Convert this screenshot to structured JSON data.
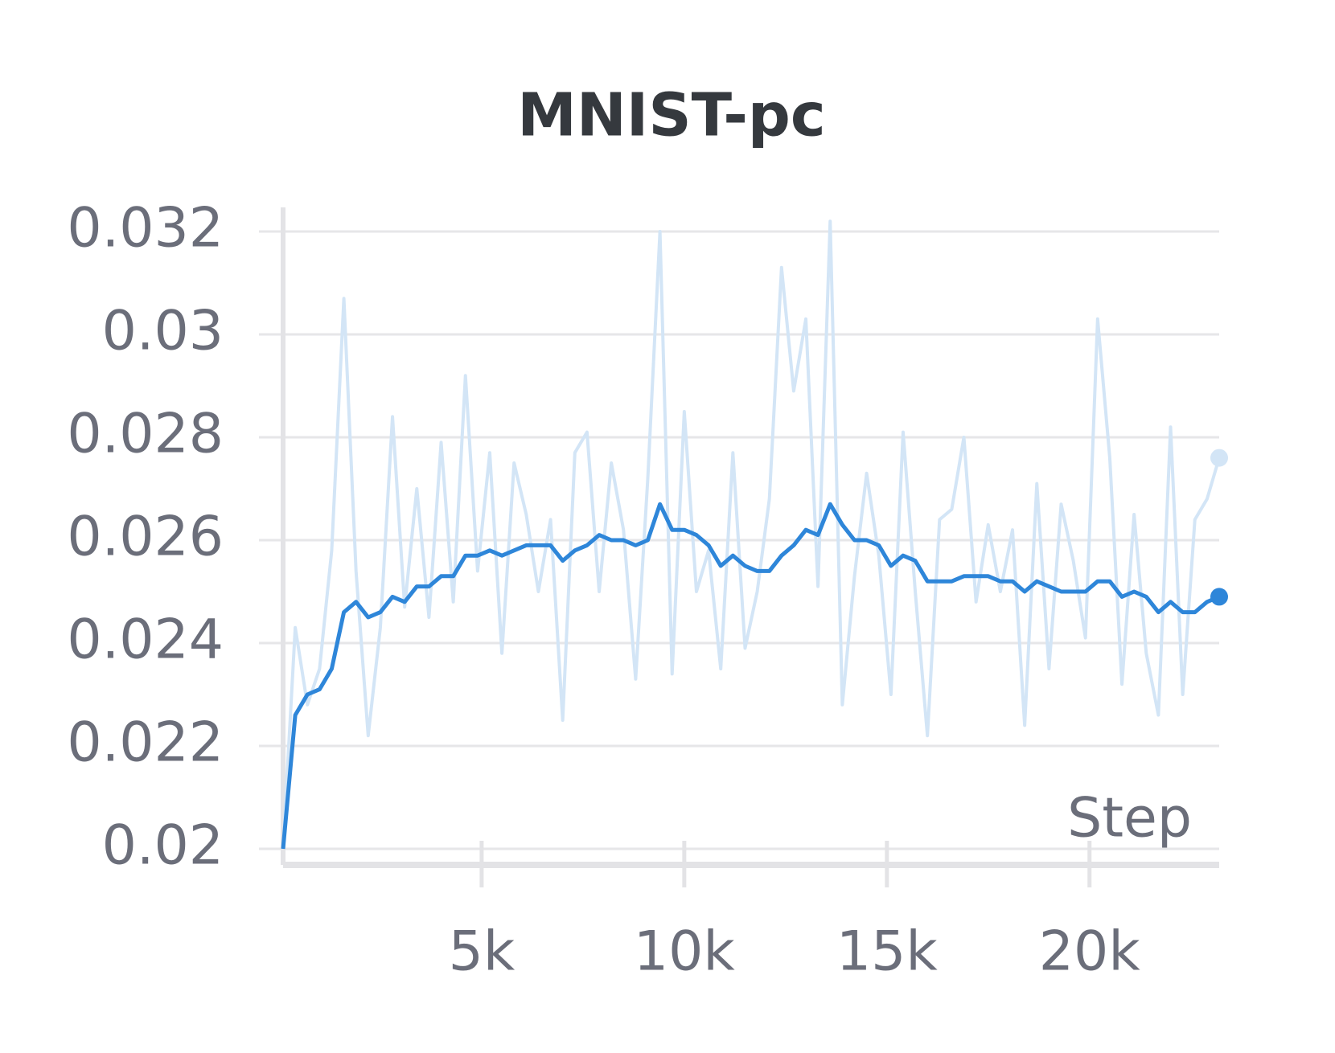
{
  "chart_data": {
    "type": "line",
    "title": "MNIST-pc",
    "x_label": "Step",
    "x": [
      100,
      400,
      700,
      1000,
      1300,
      1600,
      1900,
      2200,
      2500,
      2800,
      3100,
      3400,
      3700,
      4000,
      4300,
      4600,
      4900,
      5200,
      5500,
      5800,
      6100,
      6400,
      6700,
      7000,
      7300,
      7600,
      7900,
      8200,
      8500,
      8800,
      9100,
      9400,
      9700,
      10000,
      10300,
      10600,
      10900,
      11200,
      11500,
      11800,
      12100,
      12400,
      12700,
      13000,
      13300,
      13600,
      13900,
      14200,
      14500,
      14800,
      15100,
      15400,
      15700,
      16000,
      16300,
      16600,
      16900,
      17200,
      17500,
      17800,
      18100,
      18400,
      18700,
      19000,
      19300,
      19600,
      19900,
      20200,
      20500,
      20800,
      21100,
      21400,
      21700,
      22000,
      22300,
      22600,
      22900,
      23200
    ],
    "series": [
      {
        "color": "#d3e5f6",
        "values": [
          0.02,
          0.0243,
          0.0228,
          0.0235,
          0.0258,
          0.0307,
          0.0254,
          0.0222,
          0.0243,
          0.0284,
          0.0247,
          0.027,
          0.0245,
          0.0279,
          0.0248,
          0.0292,
          0.0254,
          0.0277,
          0.0238,
          0.0275,
          0.0265,
          0.025,
          0.0264,
          0.0225,
          0.0277,
          0.0281,
          0.025,
          0.0275,
          0.0262,
          0.0233,
          0.0272,
          0.032,
          0.0234,
          0.0285,
          0.025,
          0.0258,
          0.0235,
          0.0277,
          0.0239,
          0.025,
          0.0268,
          0.0313,
          0.0289,
          0.0303,
          0.0251,
          0.0322,
          0.0228,
          0.0253,
          0.0273,
          0.0257,
          0.023,
          0.0281,
          0.025,
          0.0222,
          0.0264,
          0.0266,
          0.028,
          0.0248,
          0.0263,
          0.025,
          0.0262,
          0.0224,
          0.0271,
          0.0235,
          0.0267,
          0.0256,
          0.0241,
          0.0303,
          0.0276,
          0.0232,
          0.0265,
          0.0238,
          0.0226,
          0.0282,
          0.023,
          0.0264,
          0.0268,
          0.0276
        ]
      },
      {
        "color": "#2e86d9",
        "values": [
          0.02,
          0.0226,
          0.023,
          0.0231,
          0.0235,
          0.0246,
          0.0248,
          0.0245,
          0.0246,
          0.0249,
          0.0248,
          0.0251,
          0.0251,
          0.0253,
          0.0253,
          0.0257,
          0.0257,
          0.0258,
          0.0257,
          0.0258,
          0.0259,
          0.0259,
          0.0259,
          0.0256,
          0.0258,
          0.0259,
          0.0261,
          0.026,
          0.026,
          0.0259,
          0.026,
          0.0267,
          0.0262,
          0.0262,
          0.0261,
          0.0259,
          0.0255,
          0.0257,
          0.0255,
          0.0254,
          0.0254,
          0.0257,
          0.0259,
          0.0262,
          0.0261,
          0.0267,
          0.0263,
          0.026,
          0.026,
          0.0259,
          0.0255,
          0.0257,
          0.0256,
          0.0252,
          0.0252,
          0.0252,
          0.0253,
          0.0253,
          0.0253,
          0.0252,
          0.0252,
          0.025,
          0.0252,
          0.0251,
          0.025,
          0.025,
          0.025,
          0.0252,
          0.0252,
          0.0249,
          0.025,
          0.0249,
          0.0246,
          0.0248,
          0.0246,
          0.0246,
          0.0248,
          0.0249
        ]
      }
    ],
    "xlim": [
      100,
      23200
    ],
    "ylim": [
      0.01975,
      0.03225
    ],
    "xticks": [
      {
        "value": 5000,
        "label": "5k"
      },
      {
        "value": 10000,
        "label": "10k"
      },
      {
        "value": 15000,
        "label": "15k"
      },
      {
        "value": 20000,
        "label": "20k"
      }
    ],
    "yticks": [
      0.02,
      0.022,
      0.024,
      0.026,
      0.028,
      0.03,
      0.032
    ],
    "grid": true
  }
}
